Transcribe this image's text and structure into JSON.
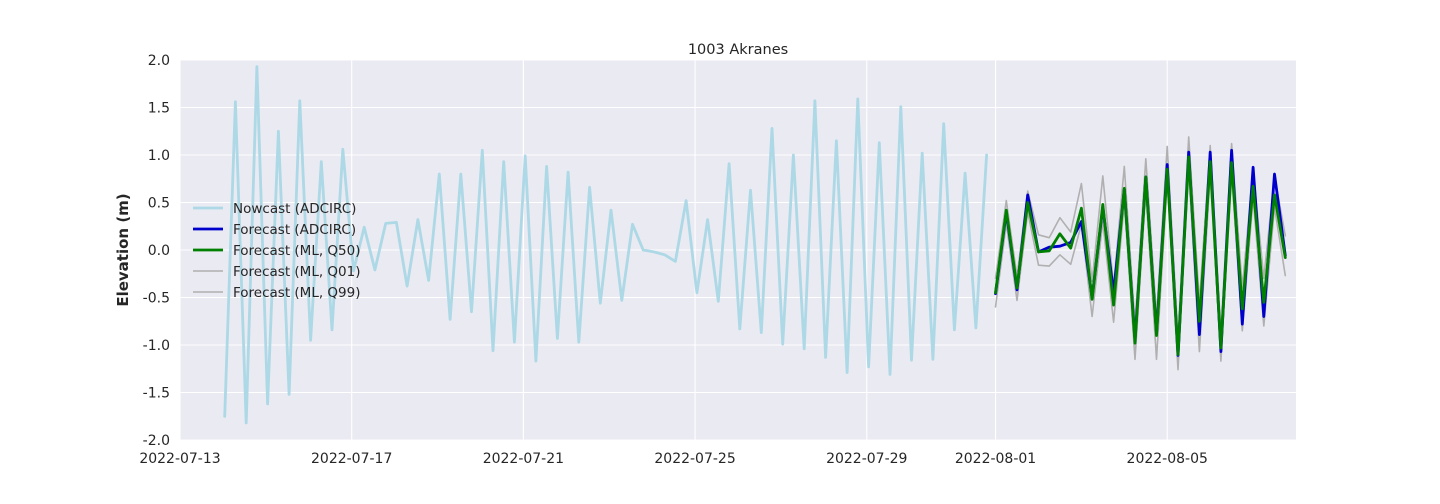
{
  "chart_data": {
    "type": "line",
    "title": "1003 Akranes",
    "xlabel": "",
    "ylabel": "Elevation (m)",
    "x_range": [
      "2022-07-13T00:00",
      "2022-08-08T00:00"
    ],
    "ylim": [
      -2.0,
      2.0
    ],
    "x_ticks": [
      "2022-07-13",
      "2022-07-17",
      "2022-07-21",
      "2022-07-25",
      "2022-07-29",
      "2022-08-01",
      "2022-08-05"
    ],
    "y_ticks": [
      "-2.0",
      "-1.5",
      "-1.0",
      "-0.5",
      "0.0",
      "0.5",
      "1.0",
      "1.5",
      "2.0"
    ],
    "grid": true,
    "legend_position": "center-left",
    "colors": {
      "background": "#eaeaf2",
      "grid": "#ffffff",
      "text": "#262626"
    },
    "series": [
      {
        "name": "Nowcast (ADCIRC)",
        "color": "#add8e6",
        "width": 2.8,
        "x": [
          "2022-07-14T01:00",
          "2022-07-14T07:00",
          "2022-07-14T13:00",
          "2022-07-14T19:00",
          "2022-07-15T01:00",
          "2022-07-15T07:00",
          "2022-07-15T13:00",
          "2022-07-15T19:00",
          "2022-07-16T01:00",
          "2022-07-16T07:00",
          "2022-07-16T13:00",
          "2022-07-16T19:00",
          "2022-07-17T01:00",
          "2022-07-17T07:00",
          "2022-07-17T13:00",
          "2022-07-17T19:00",
          "2022-07-18T01:00",
          "2022-07-18T07:00",
          "2022-07-18T13:00",
          "2022-07-18T19:00",
          "2022-07-19T01:00",
          "2022-07-19T07:00",
          "2022-07-19T13:00",
          "2022-07-19T19:00",
          "2022-07-20T01:00",
          "2022-07-20T07:00",
          "2022-07-20T13:00",
          "2022-07-20T19:00",
          "2022-07-21T01:00",
          "2022-07-21T07:00",
          "2022-07-21T13:00",
          "2022-07-21T19:00",
          "2022-07-22T01:00",
          "2022-07-22T07:00",
          "2022-07-22T13:00",
          "2022-07-22T19:00",
          "2022-07-23T01:00",
          "2022-07-23T07:00",
          "2022-07-23T13:00",
          "2022-07-23T19:00",
          "2022-07-24T01:00",
          "2022-07-24T07:00",
          "2022-07-24T13:00",
          "2022-07-24T19:00",
          "2022-07-25T01:00",
          "2022-07-25T07:00",
          "2022-07-25T13:00",
          "2022-07-25T19:00",
          "2022-07-26T01:00",
          "2022-07-26T07:00",
          "2022-07-26T13:00",
          "2022-07-26T19:00",
          "2022-07-27T01:00",
          "2022-07-27T07:00",
          "2022-07-27T13:00",
          "2022-07-27T19:00",
          "2022-07-28T01:00",
          "2022-07-28T07:00",
          "2022-07-28T13:00",
          "2022-07-28T19:00",
          "2022-07-29T01:00",
          "2022-07-29T07:00",
          "2022-07-29T13:00",
          "2022-07-29T19:00",
          "2022-07-30T01:00",
          "2022-07-30T07:00",
          "2022-07-30T13:00",
          "2022-07-30T19:00",
          "2022-07-31T01:00",
          "2022-07-31T07:00",
          "2022-07-31T13:00",
          "2022-07-31T19:00"
        ],
        "y": [
          -1.75,
          1.56,
          -1.82,
          1.93,
          -1.62,
          1.25,
          -1.52,
          1.57,
          -0.95,
          0.93,
          -0.84,
          1.06,
          -0.22,
          0.24,
          -0.21,
          0.28,
          0.29,
          -0.38,
          0.32,
          -0.32,
          0.8,
          -0.73,
          0.8,
          -0.65,
          1.05,
          -1.06,
          0.93,
          -0.97,
          0.99,
          -1.17,
          0.88,
          -0.93,
          0.82,
          -0.97,
          0.66,
          -0.56,
          0.42,
          -0.53,
          0.27,
          0.0,
          -0.02,
          -0.05,
          -0.12,
          0.52,
          -0.45,
          0.32,
          -0.54,
          0.91,
          -0.83,
          0.63,
          -0.87,
          1.28,
          -0.99,
          1.0,
          -1.04,
          1.57,
          -1.13,
          1.15,
          -1.29,
          1.59,
          -1.23,
          1.13,
          -1.31,
          1.51,
          -1.16,
          1.02,
          -1.15,
          1.33,
          -0.84,
          0.81,
          -0.82,
          1.0
        ]
      },
      {
        "name": "Forecast (ADCIRC)",
        "color": "#0000cd",
        "width": 2.8,
        "x": [
          "2022-08-01T00:00",
          "2022-08-01T06:00",
          "2022-08-01T12:00",
          "2022-08-01T18:00",
          "2022-08-02T00:00",
          "2022-08-02T06:00",
          "2022-08-02T12:00",
          "2022-08-02T18:00",
          "2022-08-03T00:00",
          "2022-08-03T06:00",
          "2022-08-03T12:00",
          "2022-08-03T18:00",
          "2022-08-04T00:00",
          "2022-08-04T06:00",
          "2022-08-04T12:00",
          "2022-08-04T18:00",
          "2022-08-05T00:00",
          "2022-08-05T06:00",
          "2022-08-05T12:00",
          "2022-08-05T18:00",
          "2022-08-06T00:00",
          "2022-08-06T06:00",
          "2022-08-06T12:00",
          "2022-08-06T18:00",
          "2022-08-07T00:00",
          "2022-08-07T06:00",
          "2022-08-07T12:00",
          "2022-08-07T18:00"
        ],
        "y": [
          -0.46,
          0.4,
          -0.42,
          0.58,
          -0.02,
          0.03,
          0.04,
          0.08,
          0.3,
          -0.5,
          0.45,
          -0.45,
          0.64,
          -0.95,
          0.77,
          -0.88,
          0.9,
          -1.11,
          1.03,
          -0.89,
          1.03,
          -1.07,
          1.05,
          -0.78,
          0.87,
          -0.7,
          0.8,
          -0.06
        ]
      },
      {
        "name": "Forecast (ML, Q50)",
        "color": "#008000",
        "width": 2.8,
        "x": [
          "2022-08-01T00:00",
          "2022-08-01T06:00",
          "2022-08-01T12:00",
          "2022-08-01T18:00",
          "2022-08-02T00:00",
          "2022-08-02T06:00",
          "2022-08-02T12:00",
          "2022-08-02T18:00",
          "2022-08-03T00:00",
          "2022-08-03T06:00",
          "2022-08-03T12:00",
          "2022-08-03T18:00",
          "2022-08-04T00:00",
          "2022-08-04T06:00",
          "2022-08-04T12:00",
          "2022-08-04T18:00",
          "2022-08-05T00:00",
          "2022-08-05T06:00",
          "2022-08-05T12:00",
          "2022-08-05T18:00",
          "2022-08-06T00:00",
          "2022-08-06T06:00",
          "2022-08-06T12:00",
          "2022-08-06T18:00",
          "2022-08-07T00:00",
          "2022-08-07T06:00",
          "2022-08-07T12:00",
          "2022-08-07T18:00"
        ],
        "y": [
          -0.45,
          0.42,
          -0.4,
          0.5,
          -0.02,
          -0.01,
          0.17,
          0.02,
          0.44,
          -0.52,
          0.48,
          -0.58,
          0.65,
          -0.98,
          0.77,
          -0.9,
          0.85,
          -1.1,
          0.98,
          -0.75,
          0.93,
          -1.03,
          0.92,
          -0.62,
          0.67,
          -0.55,
          0.58,
          -0.08
        ]
      },
      {
        "name": "Forecast (ML, Q01)",
        "color": "#b0b0b0",
        "width": 1.6,
        "x": [
          "2022-08-01T00:00",
          "2022-08-01T06:00",
          "2022-08-01T12:00",
          "2022-08-01T18:00",
          "2022-08-02T00:00",
          "2022-08-02T06:00",
          "2022-08-02T12:00",
          "2022-08-02T18:00",
          "2022-08-03T00:00",
          "2022-08-03T06:00",
          "2022-08-03T12:00",
          "2022-08-03T18:00",
          "2022-08-04T00:00",
          "2022-08-04T06:00",
          "2022-08-04T12:00",
          "2022-08-04T18:00",
          "2022-08-05T00:00",
          "2022-08-05T06:00",
          "2022-08-05T12:00",
          "2022-08-05T18:00",
          "2022-08-06T00:00",
          "2022-08-06T06:00",
          "2022-08-06T12:00",
          "2022-08-06T18:00",
          "2022-08-07T00:00",
          "2022-08-07T06:00",
          "2022-08-07T12:00",
          "2022-08-07T18:00"
        ],
        "y": [
          -0.6,
          0.28,
          -0.53,
          0.4,
          -0.16,
          -0.17,
          -0.05,
          -0.15,
          0.27,
          -0.7,
          0.3,
          -0.76,
          0.5,
          -1.15,
          0.62,
          -1.15,
          0.72,
          -1.26,
          0.85,
          -1.07,
          0.8,
          -1.17,
          0.8,
          -0.85,
          0.55,
          -0.8,
          0.45,
          -0.27
        ]
      },
      {
        "name": "Forecast (ML, Q99)",
        "color": "#b0b0b0",
        "width": 1.6,
        "x": [
          "2022-08-01T00:00",
          "2022-08-01T06:00",
          "2022-08-01T12:00",
          "2022-08-01T18:00",
          "2022-08-02T00:00",
          "2022-08-02T06:00",
          "2022-08-02T12:00",
          "2022-08-02T18:00",
          "2022-08-03T00:00",
          "2022-08-03T06:00",
          "2022-08-03T12:00",
          "2022-08-03T18:00",
          "2022-08-04T00:00",
          "2022-08-04T06:00",
          "2022-08-04T12:00",
          "2022-08-04T18:00",
          "2022-08-05T00:00",
          "2022-08-05T06:00",
          "2022-08-05T12:00",
          "2022-08-05T18:00",
          "2022-08-06T00:00",
          "2022-08-06T06:00",
          "2022-08-06T12:00",
          "2022-08-06T18:00",
          "2022-08-07T00:00",
          "2022-08-07T06:00",
          "2022-08-07T12:00",
          "2022-08-07T18:00"
        ],
        "y": [
          -0.3,
          0.52,
          -0.28,
          0.62,
          0.16,
          0.13,
          0.34,
          0.19,
          0.7,
          -0.33,
          0.78,
          -0.38,
          0.88,
          -0.78,
          0.96,
          -0.7,
          1.09,
          -0.92,
          1.19,
          -0.55,
          1.1,
          -0.86,
          1.12,
          -0.4,
          0.85,
          -0.3,
          0.78,
          0.15
        ]
      }
    ]
  }
}
